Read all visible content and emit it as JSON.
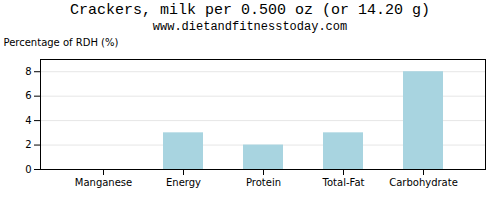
{
  "chart_data": {
    "type": "bar",
    "title": "Crackers, milk per 0.500 oz (or 14.20 g)",
    "subtitle": "www.dietandfitnesstoday.com",
    "categories": [
      "Manganese",
      "Energy",
      "Protein",
      "Total-Fat",
      "Carbohydrate"
    ],
    "values": [
      0,
      3,
      2,
      3,
      8
    ],
    "color": "#a8d4e0",
    "ylabel": "Percentage of RDH (%)",
    "ylim": [
      0,
      9
    ],
    "yticks": [
      0,
      2,
      4,
      6,
      8
    ],
    "grid": true
  }
}
